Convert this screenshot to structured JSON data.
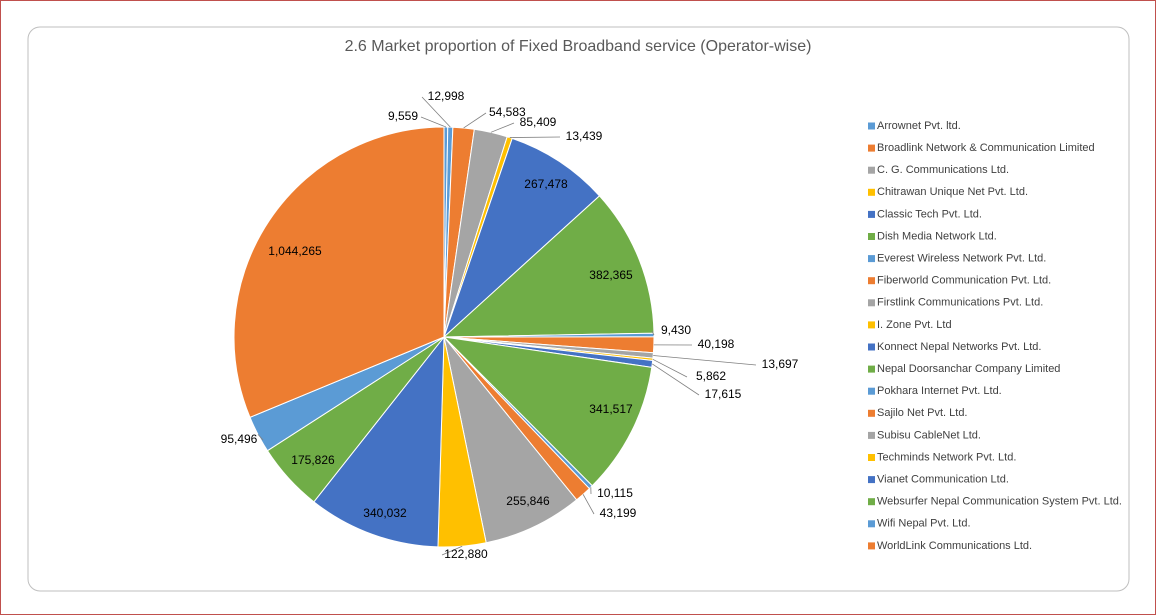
{
  "chart_data": {
    "type": "pie",
    "title": "2.6 Market proportion of Fixed Broadband service (Operator-wise)",
    "categories": [
      "Arrownet Pvt. ltd.",
      null,
      "Broadlink Network & Communication Limited",
      "C. G. Communications Ltd.",
      "Chitrawan Unique Net Pvt. Ltd.",
      "Classic Tech Pvt. Ltd.",
      "Dish Media Network Ltd.",
      "Everest Wireless Network Pvt. Ltd.",
      "Fiberworld Communication Pvt. Ltd.",
      "Firstlink Communications Pvt. Ltd.",
      "I. Zone Pvt. Ltd",
      "Konnect Nepal Networks Pvt. Ltd.",
      "Nepal Doorsanchar Company Limited",
      "Pokhara Internet Pvt. Ltd.",
      "Sajilo Net Pvt. Ltd.",
      "Subisu CableNet Ltd.",
      "Techminds Network Pvt. Ltd.",
      "Vianet Communication Ltd.",
      "Websurfer Nepal Communication System Pvt. Ltd.",
      "Wifi Nepal Pvt. Ltd.",
      "WorldLink Communications Ltd."
    ],
    "values": [
      9559,
      12998,
      54583,
      85409,
      13439,
      267478,
      382365,
      9430,
      40198,
      13697,
      5862,
      17615,
      341517,
      10115,
      43199,
      255846,
      122880,
      340032,
      175826,
      95496,
      1044265
    ],
    "value_labels": [
      "9,559",
      "12,998",
      "54,583",
      "85,409",
      "13,439",
      "267,478",
      "382,365",
      "9,430",
      "40,198",
      "13,697",
      "5,862",
      "17,615",
      "341,517",
      "10,115",
      "43,199",
      "255,846",
      "122,880",
      "340,032",
      "175,826",
      "95,496",
      "1,044,265"
    ],
    "colors": [
      "#5b9bd5",
      "#5b9bd5",
      "#ed7d31",
      "#a5a5a5",
      "#ffc000",
      "#4472c4",
      "#70ad47",
      "#5b9bd5",
      "#ed7d31",
      "#a5a5a5",
      "#ffc000",
      "#4472c4",
      "#70ad47",
      "#5b9bd5",
      "#ed7d31",
      "#a5a5a5",
      "#ffc000",
      "#4472c4",
      "#70ad47",
      "#5b9bd5",
      "#ed7d31"
    ]
  }
}
